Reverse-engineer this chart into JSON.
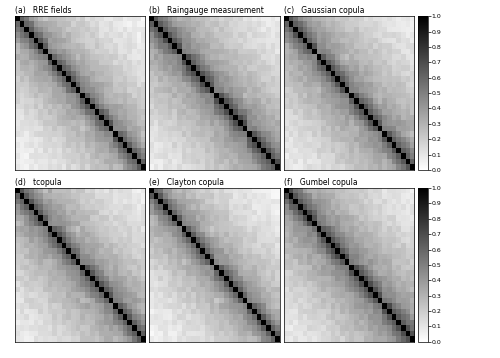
{
  "titles": [
    "RRE fields",
    "Raingauge measurement",
    "Gaussian copula",
    "tcopula",
    "Clayton copula",
    "Gumbel copula"
  ],
  "labels": [
    "(a)",
    "(b)",
    "(c)",
    "(d)",
    "(e)",
    "(f)"
  ],
  "n": 28,
  "colormap": "gray_r",
  "vmin": 0,
  "vmax": 1,
  "colorbar_ticks": [
    0,
    0.1,
    0.2,
    0.3,
    0.4,
    0.5,
    0.6,
    0.7,
    0.8,
    0.9,
    1.0
  ],
  "bg_color": "#ffffff",
  "block_structure": [
    0,
    7,
    14,
    21,
    28
  ],
  "params": [
    {
      "within": 0.75,
      "between": 0.52,
      "within_decay": 0.18,
      "between_decay": 0.08,
      "noise": 0.04,
      "seed": 1
    },
    {
      "within": 0.78,
      "between": 0.54,
      "within_decay": 0.16,
      "between_decay": 0.07,
      "noise": 0.04,
      "seed": 2
    },
    {
      "within": 0.76,
      "between": 0.53,
      "within_decay": 0.17,
      "between_decay": 0.07,
      "noise": 0.04,
      "seed": 3
    },
    {
      "within": 0.75,
      "between": 0.52,
      "within_decay": 0.17,
      "between_decay": 0.07,
      "noise": 0.04,
      "seed": 4
    },
    {
      "within": 0.74,
      "between": 0.51,
      "within_decay": 0.18,
      "between_decay": 0.08,
      "noise": 0.04,
      "seed": 5
    },
    {
      "within": 0.79,
      "between": 0.55,
      "within_decay": 0.16,
      "between_decay": 0.07,
      "noise": 0.04,
      "seed": 6
    }
  ]
}
